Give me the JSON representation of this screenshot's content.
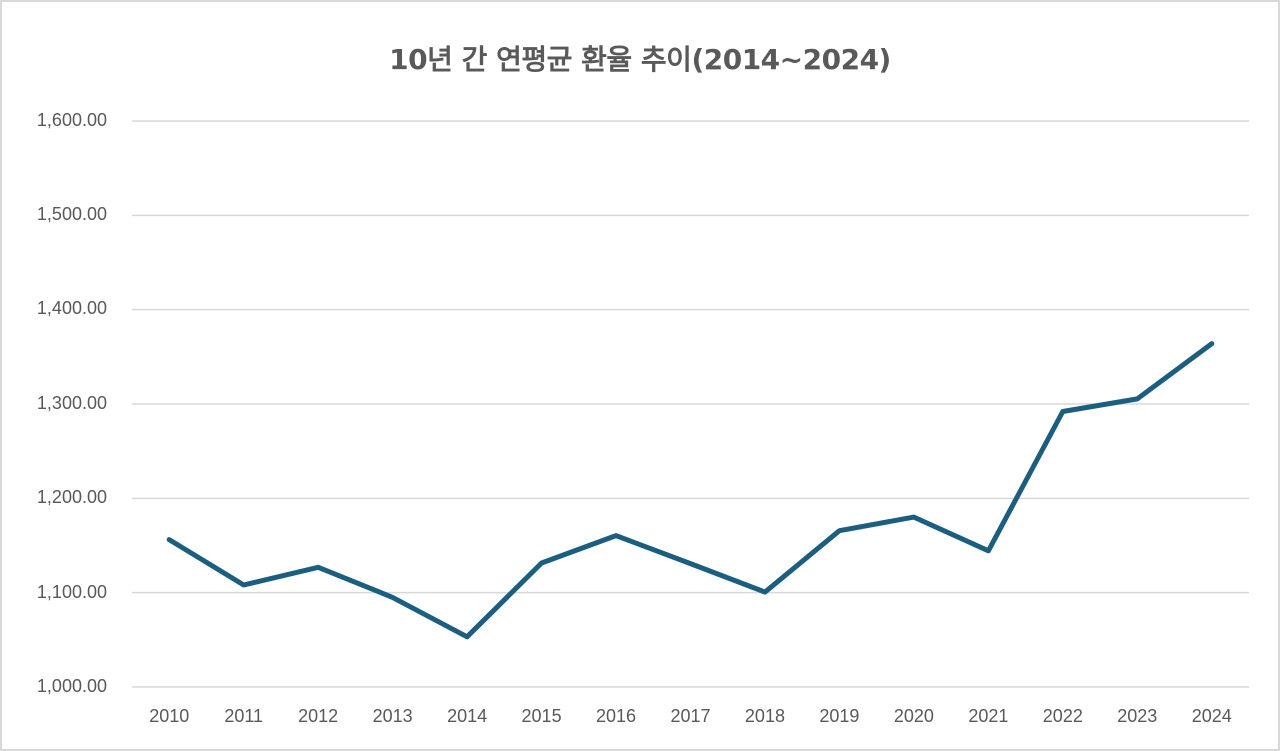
{
  "chart_data": {
    "type": "line",
    "title": "10년 간 연평균 환율 추이(2014~2024)",
    "xlabel": "",
    "ylabel": "",
    "categories": [
      "2010",
      "2011",
      "2012",
      "2013",
      "2014",
      "2015",
      "2016",
      "2017",
      "2018",
      "2019",
      "2020",
      "2021",
      "2022",
      "2023",
      "2024"
    ],
    "series": [
      {
        "name": "연평균 환율",
        "color": "#1b5e7f",
        "values": [
          1156.3,
          1108.1,
          1126.9,
          1095.0,
          1053.2,
          1131.5,
          1160.5,
          1130.8,
          1100.6,
          1165.7,
          1180.1,
          1144.4,
          1292.0,
          1305.4,
          1364.0
        ]
      }
    ],
    "ylim": [
      1000,
      1600
    ],
    "yticks": [
      "1,000.00",
      "1,100.00",
      "1,200.00",
      "1,300.00",
      "1,400.00",
      "1,500.00",
      "1,600.00"
    ],
    "grid": true,
    "legend": "none"
  },
  "colors": {
    "line": "#1b5e7f",
    "grid": "#d9d9d9",
    "text": "#595959",
    "border": "#d9d9d9"
  }
}
